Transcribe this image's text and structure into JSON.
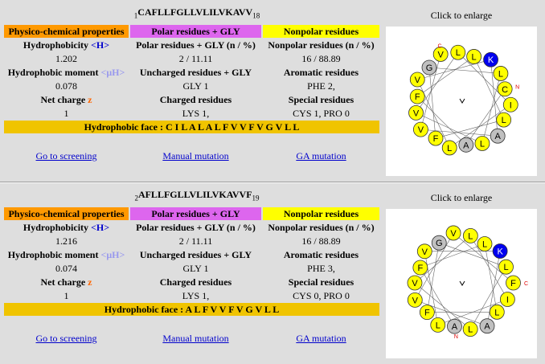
{
  "panels": [
    {
      "start": "1",
      "sequence": "CAFLLFGLLVLILVKAVV",
      "end": "18",
      "headers": [
        "Physico-chemical properties",
        "Polar residues + GLY",
        "Nonpolar residues"
      ],
      "rows": [
        [
          "Hydrophobicity",
          "Polar residues + GLY (n / %)",
          "Nonpolar residues (n / %)"
        ],
        [
          "1.202",
          "2 / 11.11",
          "16 / 88.89"
        ],
        [
          "Hydrophobic moment",
          "Uncharged residues + GLY",
          "Aromatic residues"
        ],
        [
          "0.078",
          "GLY 1",
          "PHE 2,"
        ],
        [
          "Net charge",
          "Charged residues",
          "Special residues"
        ],
        [
          "1",
          "LYS 1,",
          "CYS 1, PRO 0"
        ]
      ],
      "symbols": [
        "<H>",
        null,
        "<μH>",
        null,
        "z",
        null
      ],
      "hydrophobic_face": "Hydrophobic face : C I L A L A L F V V F V G V L L",
      "links": [
        "Go to screening",
        "Manual mutation",
        "GA mutation"
      ],
      "enlarge": "Click to enlarge",
      "wheel": {
        "residues": [
          "C",
          "A",
          "F",
          "L",
          "L",
          "F",
          "G",
          "L",
          "L",
          "V",
          "L",
          "I",
          "L",
          "V",
          "K",
          "A",
          "V",
          "V"
        ],
        "start_angle": 75,
        "terminals": [
          "N",
          "C"
        ]
      }
    },
    {
      "start": "2",
      "sequence": "AFLLFGLLVLILVKAVVF",
      "end": "19",
      "headers": [
        "Physico-chemical properties",
        "Polar residues + GLY",
        "Nonpolar residues"
      ],
      "rows": [
        [
          "Hydrophobicity",
          "Polar residues + GLY (n / %)",
          "Nonpolar residues (n / %)"
        ],
        [
          "1.216",
          "2 / 11.11",
          "16 / 88.89"
        ],
        [
          "Hydrophobic moment",
          "Uncharged residues + GLY",
          "Aromatic residues"
        ],
        [
          "0.074",
          "GLY 1",
          "PHE 3,"
        ],
        [
          "Net charge",
          "Charged residues",
          "Special residues"
        ],
        [
          "1",
          "LYS 1,",
          "CYS 0, PRO 0"
        ]
      ],
      "symbols": [
        "<H>",
        null,
        "<μH>",
        null,
        "z",
        null
      ],
      "hydrophobic_face": "Hydrophobic face : A L F V V F V G V L L",
      "links": [
        "Go to screening",
        "Manual mutation",
        "GA mutation"
      ],
      "enlarge": "Click to enlarge",
      "wheel": {
        "residues": [
          "A",
          "F",
          "L",
          "L",
          "F",
          "G",
          "L",
          "L",
          "V",
          "L",
          "I",
          "L",
          "V",
          "K",
          "A",
          "V",
          "V",
          "F"
        ],
        "start_angle": 190,
        "terminals": [
          "N",
          "C"
        ]
      }
    }
  ],
  "residue_colors": {
    "A": "#c0c0c0",
    "G": "#c0c0c0",
    "K": "#0000ee",
    "default": "#ffff00"
  }
}
